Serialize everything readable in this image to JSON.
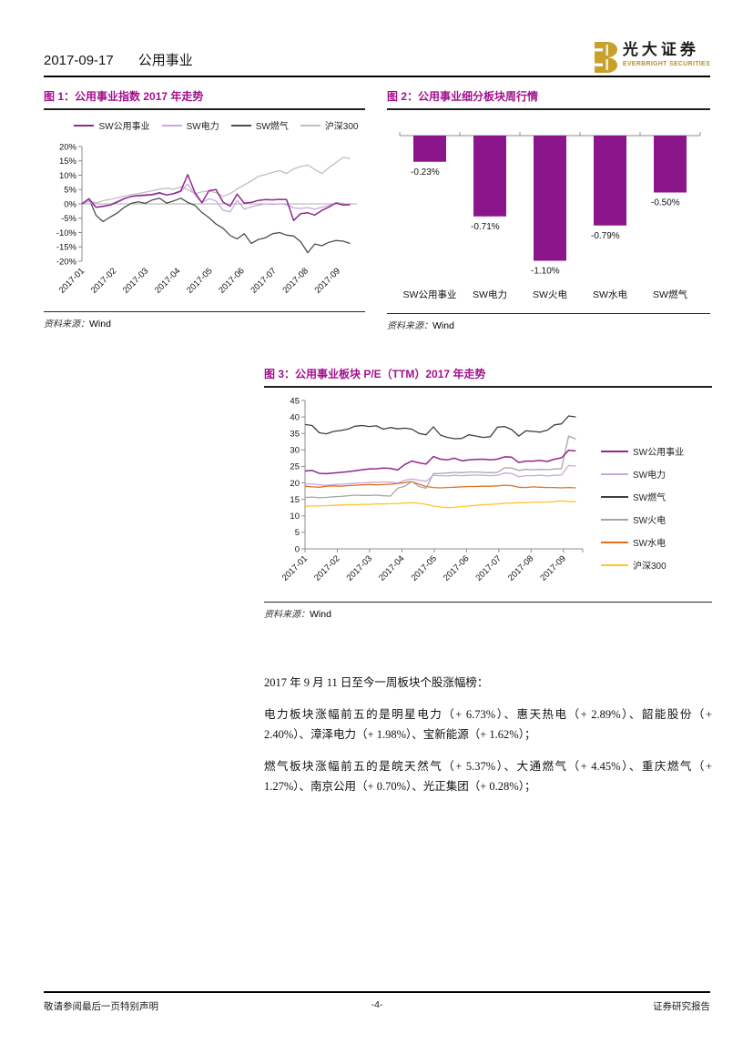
{
  "header": {
    "date": "2017-09-17",
    "section": "公用事业",
    "logo": {
      "cn": "光大证券",
      "en": "EVERBRIGHT SECURITIES"
    }
  },
  "colors": {
    "title_magenta": "#a3108e",
    "bar_purple": "#8b168b",
    "logo_gold": "#c7a12b",
    "axis_gray": "#8c8c8c"
  },
  "source": {
    "label": "资料来源：",
    "value": "Wind"
  },
  "figures": {
    "fig1": {
      "title": "图 1：公用事业指数 2017 年走势"
    },
    "fig2": {
      "title": "图 2：公用事业细分板块周行情"
    },
    "fig3": {
      "title": "图 3：公用事业板块 P/E（TTM）2017 年走势"
    }
  },
  "chart_data": [
    {
      "type": "line",
      "title": "公用事业指数2017年走势",
      "x_labels": [
        "2017-01",
        "2017-02",
        "2017-03",
        "2017-04",
        "2017-05",
        "2017-06",
        "2017-07",
        "2017-08",
        "2017-09"
      ],
      "ylim": [
        -20,
        20
      ],
      "ytick": 5,
      "yfmt": "pct",
      "zero_line": true,
      "bottom_axis": false,
      "legend_position": "top",
      "series": [
        {
          "name": "SW公用事业",
          "color": "#93278f",
          "width": 1.5,
          "values": [
            0,
            1.8,
            -1.2,
            -0.9,
            -0.4,
            0.6,
            1.8,
            2.6,
            2.9,
            3.1,
            3.3,
            3.9,
            3.1,
            3.6,
            4.5,
            10.2,
            4.0,
            0.4,
            4.6,
            5.0,
            0.6,
            -0.8,
            3.4,
            0.3,
            0.5,
            1.2,
            1.5,
            1.4,
            1.6,
            1.5,
            -5.8,
            -3.4,
            -3.1,
            -3.9,
            -2.3,
            -1.1,
            0.3,
            -0.4,
            -0.3
          ]
        },
        {
          "name": "SW电力",
          "color": "#c9a8df",
          "width": 1.3,
          "values": [
            0,
            0.9,
            -1.1,
            -0.7,
            -0.2,
            0.9,
            2.0,
            2.5,
            2.8,
            2.8,
            3.1,
            3.6,
            3.1,
            3.4,
            4.2,
            7.0,
            3.2,
            0.4,
            1.8,
            1.0,
            -2.2,
            -2.8,
            1.2,
            -1.8,
            -1.0,
            -0.4,
            0.0,
            -0.2,
            0.0,
            -0.3,
            -1.4,
            -1.6,
            -1.3,
            -1.8,
            -1.2,
            -0.6,
            0.4,
            0.2,
            -0.4
          ]
        },
        {
          "name": "SW燃气",
          "color": "#4d4d4d",
          "width": 1.3,
          "values": [
            0,
            1.8,
            -4.0,
            -6.2,
            -4.6,
            -3.2,
            -1.2,
            0.2,
            0.7,
            0.2,
            1.4,
            2.0,
            0.3,
            1.0,
            2.0,
            0.5,
            -0.5,
            -3.0,
            -4.8,
            -7.0,
            -8.5,
            -11.0,
            -12.2,
            -10.4,
            -13.8,
            -12.4,
            -11.8,
            -10.4,
            -10.0,
            -10.9,
            -11.2,
            -13.2,
            -17.0,
            -14.0,
            -14.6,
            -13.4,
            -12.8,
            -13.0,
            -13.8
          ]
        },
        {
          "name": "沪深300",
          "color": "#bfbfbf",
          "width": 1.3,
          "values": [
            0,
            1.0,
            0.3,
            1.1,
            1.6,
            2.1,
            2.7,
            3.2,
            3.6,
            4.1,
            4.6,
            5.1,
            5.5,
            5.1,
            6.0,
            5.0,
            3.6,
            4.2,
            4.5,
            3.9,
            2.6,
            3.6,
            5.2,
            6.6,
            8.0,
            9.6,
            10.2,
            11.0,
            11.6,
            10.6,
            12.2,
            13.0,
            13.6,
            12.0,
            10.6,
            12.6,
            14.4,
            16.2,
            15.8
          ]
        }
      ]
    },
    {
      "type": "bar",
      "title": "公用事业细分板块周行情",
      "categories": [
        "SW公用事业",
        "SW电力",
        "SW火电",
        "SW水电",
        "SW燃气"
      ],
      "values": [
        -0.23,
        -0.71,
        -1.1,
        -0.79,
        -0.5
      ],
      "labels": [
        "-0.23%",
        "-0.71%",
        "-1.10%",
        "-0.79%",
        "-0.50%"
      ],
      "bar_color": "#8b168b",
      "ylim": [
        -1.2,
        0
      ]
    },
    {
      "type": "line",
      "title": "公用事业板块P/E（TTM）2017年走势",
      "x_labels": [
        "2017-01",
        "2017-02",
        "2017-03",
        "2017-04",
        "2017-05",
        "2017-06",
        "2017-07",
        "2017-08",
        "2017-09"
      ],
      "ylim": [
        0,
        45
      ],
      "ytick": 5,
      "yfmt": "num",
      "zero_line": false,
      "bottom_axis": true,
      "legend_position": "right",
      "series": [
        {
          "name": "SW公用事业",
          "color": "#93278f",
          "width": 1.5,
          "values": [
            23.6,
            23.8,
            22.9,
            22.8,
            23.0,
            23.2,
            23.4,
            23.7,
            24.0,
            24.2,
            24.3,
            24.5,
            24.4,
            23.9,
            25.6,
            26.6,
            26.1,
            25.7,
            28.0,
            27.2,
            27.0,
            27.5,
            26.7,
            27.0,
            27.1,
            27.2,
            27.0,
            27.2,
            27.9,
            27.8,
            26.2,
            26.6,
            26.6,
            26.8,
            26.5,
            27.2,
            27.6,
            29.9,
            29.7
          ]
        },
        {
          "name": "SW电力",
          "color": "#c9a8df",
          "width": 1.3,
          "values": [
            19.6,
            19.7,
            19.4,
            19.3,
            19.5,
            19.6,
            19.7,
            19.9,
            20.0,
            20.1,
            20.2,
            20.3,
            20.2,
            20.0,
            20.8,
            21.2,
            20.8,
            20.5,
            22.3,
            22.2,
            22.1,
            22.3,
            22.2,
            22.3,
            22.4,
            22.3,
            22.2,
            22.3,
            23.0,
            22.9,
            21.9,
            22.2,
            22.2,
            22.3,
            22.1,
            22.3,
            22.4,
            25.3,
            25.1
          ]
        },
        {
          "name": "SW燃气",
          "color": "#3f3f3f",
          "width": 1.3,
          "values": [
            37.7,
            37.4,
            35.2,
            34.9,
            35.6,
            35.9,
            36.3,
            37.2,
            37.4,
            37.1,
            37.3,
            36.3,
            36.8,
            36.4,
            36.6,
            36.3,
            35.0,
            34.6,
            37.0,
            34.5,
            33.8,
            33.4,
            33.5,
            34.6,
            34.2,
            33.8,
            34.0,
            36.9,
            37.1,
            36.2,
            34.2,
            35.8,
            35.6,
            35.4,
            36.0,
            37.6,
            37.9,
            40.3,
            40.0
          ]
        },
        {
          "name": "SW火电",
          "color": "#a6a6a6",
          "width": 1.3,
          "values": [
            15.6,
            15.7,
            15.5,
            15.6,
            15.8,
            15.9,
            16.1,
            16.3,
            16.2,
            16.2,
            16.3,
            16.1,
            16.0,
            18.4,
            19.0,
            20.4,
            18.9,
            18.4,
            22.8,
            22.9,
            23.0,
            23.2,
            23.1,
            23.3,
            23.3,
            23.2,
            23.1,
            23.2,
            24.6,
            24.5,
            23.8,
            24.1,
            24.0,
            24.1,
            24.0,
            24.2,
            24.3,
            34.2,
            33.3
          ]
        },
        {
          "name": "SW水电",
          "color": "#e2701f",
          "width": 1.3,
          "values": [
            19.0,
            18.8,
            18.7,
            19.0,
            19.1,
            19.0,
            19.2,
            19.3,
            19.4,
            19.5,
            19.4,
            19.5,
            19.6,
            19.8,
            20.1,
            20.4,
            19.6,
            18.9,
            18.6,
            18.5,
            18.6,
            18.7,
            18.8,
            18.9,
            18.9,
            19.0,
            19.0,
            19.1,
            19.3,
            19.2,
            18.7,
            18.6,
            18.8,
            18.7,
            18.6,
            18.6,
            18.5,
            18.6,
            18.5
          ]
        },
        {
          "name": "沪深300",
          "color": "#ffc42a",
          "width": 1.3,
          "values": [
            12.9,
            13.0,
            13.0,
            13.1,
            13.2,
            13.3,
            13.4,
            13.4,
            13.5,
            13.5,
            13.6,
            13.6,
            13.7,
            13.7,
            13.9,
            14.0,
            13.8,
            13.5,
            13.0,
            12.7,
            12.5,
            12.6,
            12.8,
            13.0,
            13.2,
            13.4,
            13.5,
            13.6,
            13.8,
            13.9,
            14.0,
            14.0,
            14.1,
            14.2,
            14.2,
            14.3,
            14.6,
            14.3,
            14.3
          ]
        }
      ]
    }
  ],
  "paragraphs": [
    "2017 年 9 月 11 日至今一周板块个股涨幅榜：",
    "电力板块涨幅前五的是明星电力（+ 6.73%）、惠天热电（+ 2.89%）、韶能股份（+ 2.40%）、漳泽电力（+ 1.98%）、宝新能源（+ 1.62%）；",
    "燃气板块涨幅前五的是皖天然气（+ 5.37%）、大通燃气（+ 4.45%）、重庆燃气（+ 1.27%）、南京公用（+ 0.70%）、光正集团（+ 0.28%）；"
  ],
  "footer": {
    "left": "敬请参阅最后一页特别声明",
    "page": "-4-",
    "right": "证券研究报告"
  }
}
